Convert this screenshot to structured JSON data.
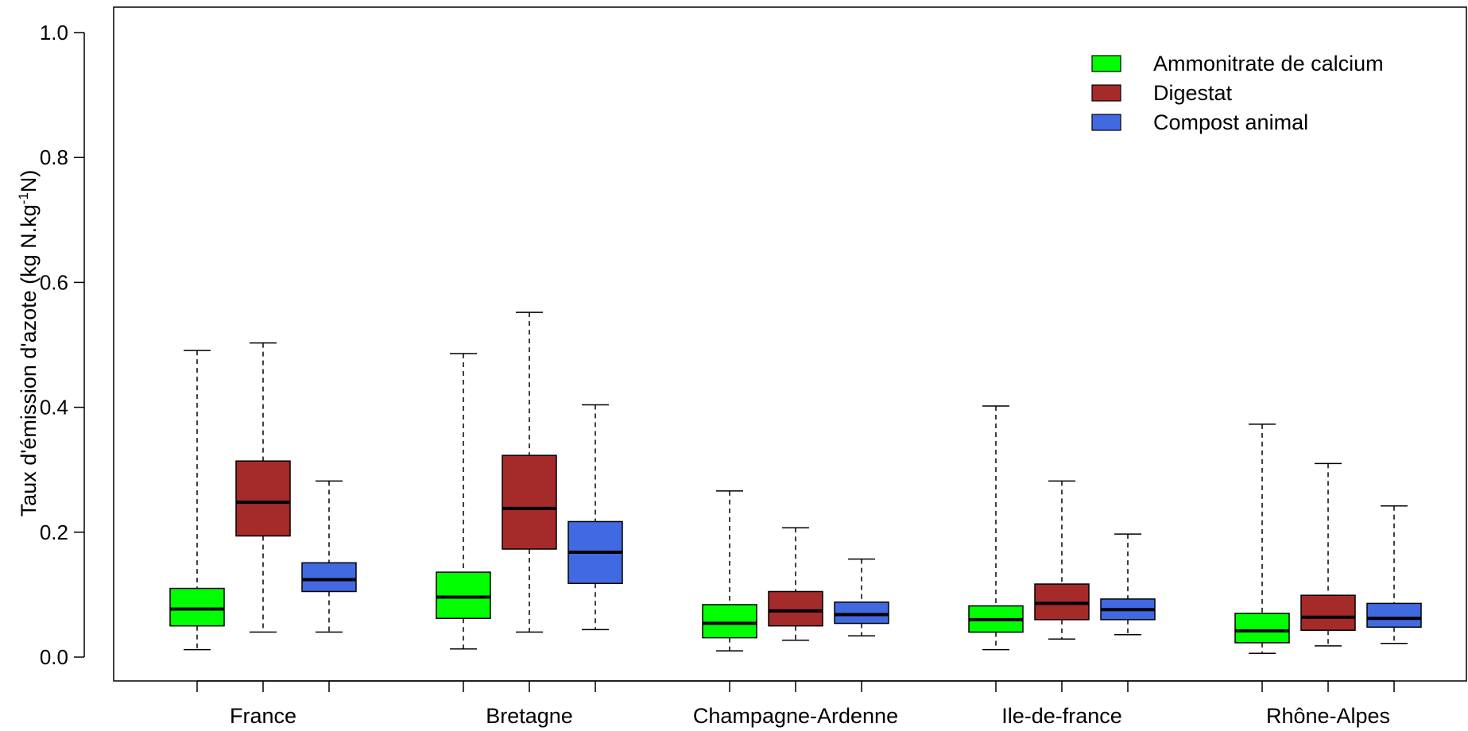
{
  "chart_data": {
    "type": "boxplot",
    "title": "",
    "xlabel": "",
    "ylabel": "Taux d'émission d'azote  (kg N.kg",
    "ylabel_sup": "-1",
    "ylabel_end": "N)",
    "ylim": [
      0.0,
      1.0
    ],
    "yticks": [
      "0.0",
      "0.2",
      "0.4",
      "0.6",
      "0.8",
      "1.0"
    ],
    "categories": [
      "France",
      "Bretagne",
      "Champagne-Ardenne",
      "Ile-de-france",
      "Rhône-Alpes"
    ],
    "legend_position": "top-right",
    "series": [
      {
        "name": "Ammonitrate de calcium",
        "color": "#00ff00",
        "boxes": [
          {
            "min": 0.012,
            "q1": 0.05,
            "median": 0.077,
            "q3": 0.11,
            "max": 0.491
          },
          {
            "min": 0.013,
            "q1": 0.062,
            "median": 0.096,
            "q3": 0.136,
            "max": 0.486
          },
          {
            "min": 0.01,
            "q1": 0.031,
            "median": 0.054,
            "q3": 0.084,
            "max": 0.266
          },
          {
            "min": 0.012,
            "q1": 0.04,
            "median": 0.06,
            "q3": 0.082,
            "max": 0.402
          },
          {
            "min": 0.006,
            "q1": 0.023,
            "median": 0.042,
            "q3": 0.07,
            "max": 0.373
          }
        ]
      },
      {
        "name": "Digestat",
        "color": "#a52a2a",
        "boxes": [
          {
            "min": 0.04,
            "q1": 0.194,
            "median": 0.248,
            "q3": 0.314,
            "max": 0.503
          },
          {
            "min": 0.04,
            "q1": 0.173,
            "median": 0.238,
            "q3": 0.323,
            "max": 0.552
          },
          {
            "min": 0.027,
            "q1": 0.05,
            "median": 0.074,
            "q3": 0.105,
            "max": 0.207
          },
          {
            "min": 0.029,
            "q1": 0.06,
            "median": 0.086,
            "q3": 0.117,
            "max": 0.282
          },
          {
            "min": 0.018,
            "q1": 0.043,
            "median": 0.064,
            "q3": 0.099,
            "max": 0.31
          }
        ]
      },
      {
        "name": "Compost animal",
        "color": "#4169e1",
        "boxes": [
          {
            "min": 0.04,
            "q1": 0.105,
            "median": 0.124,
            "q3": 0.151,
            "max": 0.282
          },
          {
            "min": 0.044,
            "q1": 0.118,
            "median": 0.168,
            "q3": 0.217,
            "max": 0.404
          },
          {
            "min": 0.034,
            "q1": 0.054,
            "median": 0.068,
            "q3": 0.088,
            "max": 0.157
          },
          {
            "min": 0.036,
            "q1": 0.06,
            "median": 0.076,
            "q3": 0.093,
            "max": 0.197
          },
          {
            "min": 0.022,
            "q1": 0.048,
            "median": 0.062,
            "q3": 0.086,
            "max": 0.242
          }
        ]
      }
    ]
  }
}
